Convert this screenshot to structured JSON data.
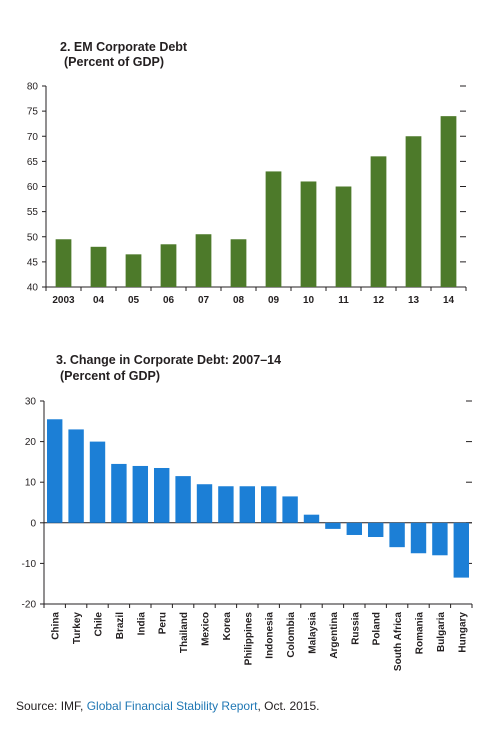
{
  "chart_data": [
    {
      "type": "bar",
      "title": "2. EM Corporate Debt",
      "subtitle": "(Percent of GDP)",
      "categories": [
        "2003",
        "04",
        "05",
        "06",
        "07",
        "08",
        "09",
        "10",
        "11",
        "12",
        "13",
        "14"
      ],
      "values": [
        49.5,
        48,
        46.5,
        48.5,
        50.5,
        49.5,
        63,
        61,
        60,
        66,
        70,
        74
      ],
      "ylim": [
        40,
        80
      ],
      "yticks": [
        40,
        45,
        50,
        55,
        60,
        65,
        70,
        75,
        80
      ],
      "color": "#4d7a2a",
      "xlabel": "",
      "ylabel": ""
    },
    {
      "type": "bar",
      "title": "3. Change in Corporate Debt: 2007–14",
      "subtitle": "(Percent of GDP)",
      "categories": [
        "China",
        "Turkey",
        "Chile",
        "Brazil",
        "India",
        "Peru",
        "Thailand",
        "Mexico",
        "Korea",
        "Philippines",
        "Indonesia",
        "Colombia",
        "Malaysia",
        "Argentina",
        "Russia",
        "Poland",
        "South Africa",
        "Romania",
        "Bulgaria",
        "Hungary"
      ],
      "values": [
        25.5,
        23,
        20,
        14.5,
        14,
        13.5,
        11.5,
        9.5,
        9,
        9,
        9,
        6.5,
        2,
        -1.5,
        -3,
        -3.5,
        -6,
        -7.5,
        -8,
        -13.5
      ],
      "ylim": [
        -20,
        30
      ],
      "yticks": [
        -20,
        -10,
        0,
        10,
        20,
        30
      ],
      "color": "#1c7fd6",
      "xlabel": "",
      "ylabel": ""
    }
  ],
  "source": {
    "prefix": "Source: IMF, ",
    "link": "Global Financial Stability Report",
    "suffix": ", Oct. 2015."
  }
}
